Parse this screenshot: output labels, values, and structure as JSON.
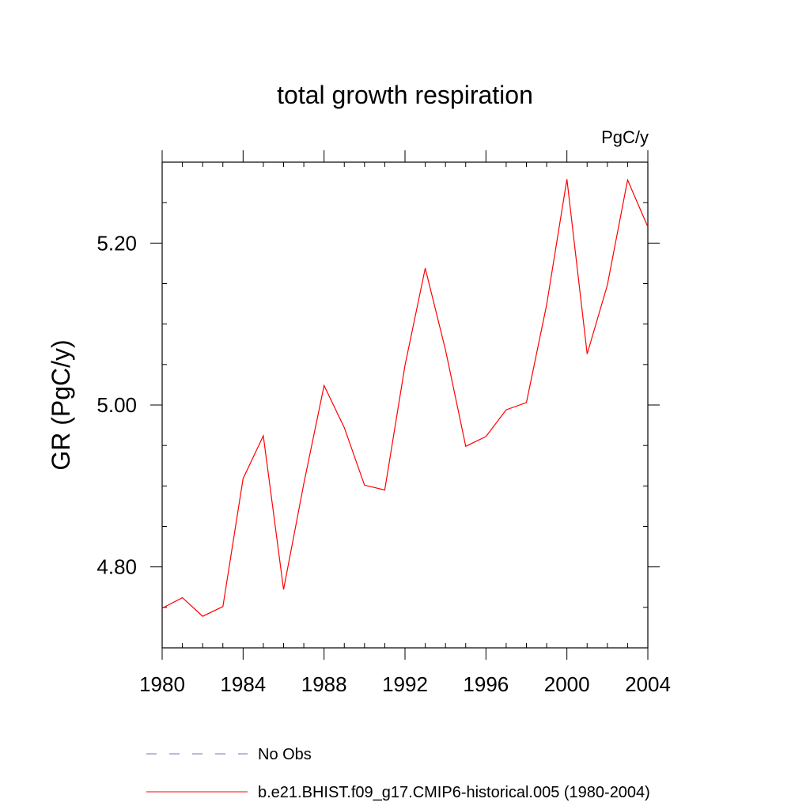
{
  "chart_data": {
    "type": "line",
    "title": "total growth respiration",
    "units_label": "PgC/y",
    "ylabel": "GR  (PgC/y)",
    "xlabel": "",
    "xlim": [
      1980,
      2004
    ],
    "ylim": [
      4.7,
      5.3
    ],
    "x_ticks": [
      "1980",
      "1984",
      "1988",
      "1992",
      "1996",
      "2000",
      "2004"
    ],
    "y_ticks": [
      "4.80",
      "5.00",
      "5.20"
    ],
    "grid": false,
    "series": [
      {
        "name": "b.e21.BHIST.f09_g17.CMIP6-historical.005 (1980-2004)",
        "color": "#ff0000",
        "x": [
          1980,
          1981,
          1982,
          1983,
          1984,
          1985,
          1986,
          1987,
          1988,
          1989,
          1990,
          1991,
          1992,
          1993,
          1994,
          1995,
          1996,
          1997,
          1998,
          1999,
          2000,
          2001,
          2002,
          2003,
          2004
        ],
        "y": [
          4.749,
          4.762,
          4.739,
          4.751,
          4.909,
          4.962,
          4.772,
          4.903,
          5.024,
          4.972,
          4.901,
          4.895,
          5.049,
          5.169,
          5.068,
          4.949,
          4.961,
          4.994,
          5.003,
          5.124,
          5.279,
          5.063,
          5.148,
          5.278,
          5.22
        ]
      }
    ],
    "legend": [
      {
        "label": "No Obs",
        "color": "#7070c0",
        "style": "dashed"
      },
      {
        "label": "b.e21.BHIST.f09_g17.CMIP6-historical.005 (1980-2004)",
        "color": "#ff0000",
        "style": "solid"
      }
    ]
  }
}
